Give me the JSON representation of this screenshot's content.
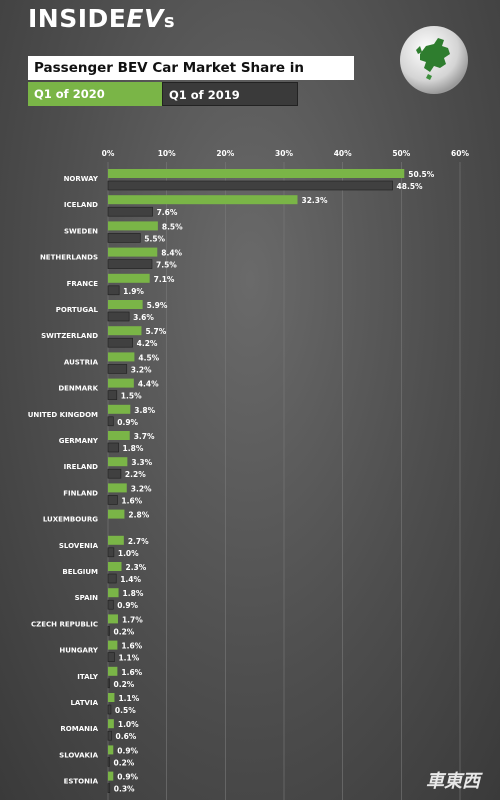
{
  "header": {
    "logo_main": "INSIDE",
    "logo_ev": "EV",
    "logo_s": "s",
    "title": "Passenger BEV Car Market Share in Europe"
  },
  "legend": {
    "q1_2020": "Q1 of 2020",
    "q1_2019": "Q1 of 2019"
  },
  "watermark": "車東西",
  "colors": {
    "series_2020": "#7ab547",
    "series_2019": "#404040"
  },
  "chart_data": {
    "type": "bar",
    "orientation": "horizontal",
    "xlim": [
      0,
      60
    ],
    "x_ticks": [
      "0%",
      "10%",
      "20%",
      "30%",
      "40%",
      "50%",
      "60%"
    ],
    "x_tick_values": [
      0,
      10,
      20,
      30,
      40,
      50,
      60
    ],
    "categories": [
      "NORWAY",
      "ICELAND",
      "SWEDEN",
      "NETHERLANDS",
      "FRANCE",
      "PORTUGAL",
      "SWITZERLAND",
      "AUSTRIA",
      "DENMARK",
      "UNITED KINGDOM",
      "GERMANY",
      "IRELAND",
      "FINLAND",
      "LUXEMBOURG",
      "SLOVENIA",
      "BELGIUM",
      "SPAIN",
      "CZECH REPUBLIC",
      "HUNGARY",
      "ITALY",
      "LATVIA",
      "ROMANIA",
      "SLOVAKIA",
      "ESTONIA"
    ],
    "series": [
      {
        "name": "Q1 of 2020",
        "values": [
          50.5,
          32.3,
          8.5,
          8.4,
          7.1,
          5.9,
          5.7,
          4.5,
          4.4,
          3.8,
          3.7,
          3.3,
          3.2,
          2.8,
          2.7,
          2.3,
          1.8,
          1.7,
          1.6,
          1.6,
          1.1,
          1.0,
          0.9,
          0.9
        ],
        "labels": [
          "50.5%",
          "32.3%",
          "8.5%",
          "8.4%",
          "7.1%",
          "5.9%",
          "5.7%",
          "4.5%",
          "4.4%",
          "3.8%",
          "3.7%",
          "3.3%",
          "3.2%",
          "2.8%",
          "2.7%",
          "2.3%",
          "1.8%",
          "1.7%",
          "1.6%",
          "1.6%",
          "1.1%",
          "1.0%",
          "0.9%",
          "0.9%"
        ]
      },
      {
        "name": "Q1 of 2019",
        "values": [
          48.5,
          7.6,
          5.5,
          7.5,
          1.9,
          3.6,
          4.2,
          3.2,
          1.5,
          0.9,
          1.8,
          2.2,
          1.6,
          null,
          1.0,
          1.4,
          0.9,
          0.2,
          1.1,
          0.2,
          0.5,
          0.6,
          0.2,
          0.3
        ],
        "labels": [
          "48.5%",
          "7.6%",
          "5.5%",
          "7.5%",
          "1.9%",
          "3.6%",
          "4.2%",
          "3.2%",
          "1.5%",
          "0.9%",
          "1.8%",
          "2.2%",
          "1.6%",
          "",
          "1.0%",
          "1.4%",
          "0.9%",
          "0.2%",
          "1.1%",
          "0.2%",
          "0.5%",
          "0.6%",
          "0.2%",
          "0.3%"
        ]
      }
    ]
  }
}
